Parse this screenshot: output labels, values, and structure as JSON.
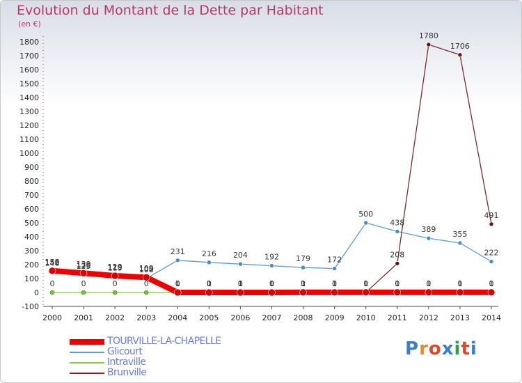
{
  "title": "Evolution du Montant de la Dette par Habitant",
  "subtitle": "(en €)",
  "logo": {
    "text": "Proxiti",
    "colors": [
      "#3a7fc8",
      "#e58a2b",
      "#d84a2c",
      "#3a7fc8",
      "#2aa14b",
      "#d84a2c",
      "#3a7fc8"
    ]
  },
  "chart_data": {
    "type": "line",
    "x": [
      "2000",
      "2001",
      "2002",
      "2003",
      "2004",
      "2005",
      "2006",
      "2007",
      "2008",
      "2009",
      "2010",
      "2011",
      "2012",
      "2013",
      "2014"
    ],
    "ylim": [
      -100,
      1800
    ],
    "yticks": [
      -100,
      0,
      100,
      200,
      300,
      400,
      500,
      600,
      700,
      800,
      900,
      1000,
      1100,
      1200,
      1300,
      1400,
      1500,
      1600,
      1700,
      1800
    ],
    "grid": false,
    "legend_position": "bottom-left",
    "series": [
      {
        "name": "TOURVILLE-LA-CHAPELLE",
        "color": "#ee0000",
        "marker": "#d80000",
        "values": [
          156,
          139,
          120,
          109,
          0,
          0,
          0,
          0,
          1,
          1,
          1,
          1,
          1,
          1,
          1
        ],
        "labels": [
          "156",
          "139",
          "120",
          "109",
          "0",
          "0",
          "0",
          "0",
          "1",
          "1",
          "1",
          "1",
          "1",
          "1",
          "1"
        ]
      },
      {
        "name": "Glicourt",
        "color": "#5a9bd5",
        "marker": "#4a8ac8",
        "values": [
          148,
          125,
          113,
          100,
          231,
          216,
          204,
          192,
          179,
          172,
          500,
          438,
          389,
          355,
          222
        ],
        "labels": [
          "148",
          "125",
          "113",
          "100",
          "231",
          "216",
          "204",
          "192",
          "179",
          "172",
          "500",
          "438",
          "389",
          "355",
          "222"
        ]
      },
      {
        "name": "Intraville",
        "color": "#88cc44",
        "marker": "#7bbf3a",
        "values": [
          0,
          0,
          0,
          0,
          0,
          0,
          0,
          0,
          0,
          0,
          0,
          0,
          0,
          0,
          0
        ],
        "labels": [
          "0",
          "0",
          "0",
          "0",
          "0",
          "0",
          "0",
          "0",
          "0",
          "0",
          "0",
          "0",
          "0",
          "0",
          "0"
        ]
      },
      {
        "name": "Brunville",
        "color": "#7a2a2a",
        "marker": "#5a1a1a",
        "values": [
          152,
          130,
          115,
          102,
          1,
          1,
          1,
          1,
          1,
          1,
          1,
          208,
          1780,
          1706,
          491
        ],
        "labels": [
          "152",
          "130",
          "115",
          "102",
          "1",
          "1",
          "1",
          "1",
          "1",
          "1",
          "1",
          "208",
          "1780",
          "1706",
          "491"
        ]
      }
    ]
  }
}
